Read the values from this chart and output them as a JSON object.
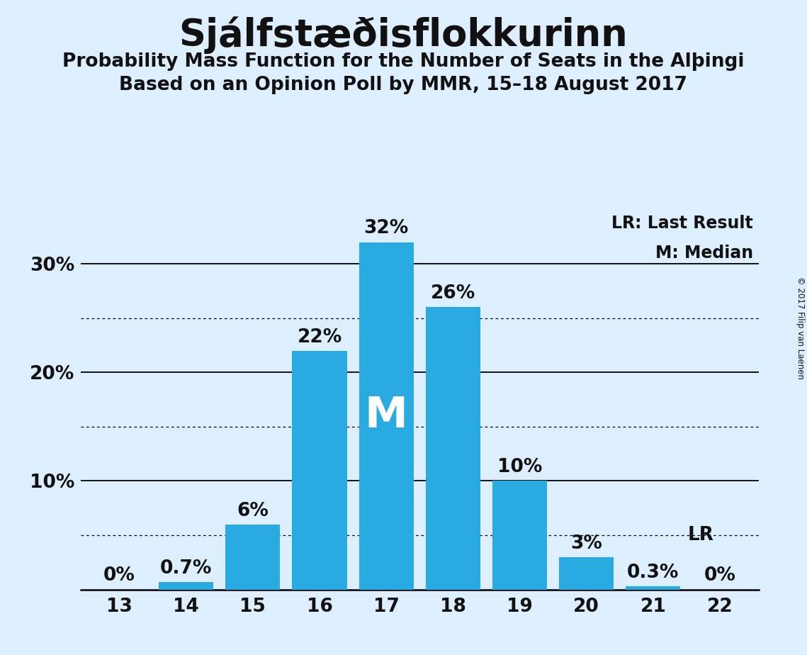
{
  "title": "Sjálfstæðisflokkurinn",
  "subtitle1": "Probability Mass Function for the Number of Seats in the Alþingi",
  "subtitle2": "Based on an Opinion Poll by MMR, 15–18 August 2017",
  "copyright": "© 2017 Filip van Laenen",
  "seats": [
    13,
    14,
    15,
    16,
    17,
    18,
    19,
    20,
    21,
    22
  ],
  "probabilities": [
    0.0,
    0.7,
    6.0,
    22.0,
    32.0,
    26.0,
    10.0,
    3.0,
    0.3,
    0.0
  ],
  "bar_color": "#29ABE2",
  "background_color": "#DDEEFF",
  "text_color": "#111111",
  "median_seat": 17,
  "last_result_seat": 21,
  "ylim": [
    0,
    35
  ],
  "solid_gridlines": [
    10,
    20,
    30
  ],
  "dotted_gridlines": [
    5,
    15,
    25
  ],
  "legend_lr": "LR: Last Result",
  "legend_m": "M: Median",
  "label_fontsize": 19,
  "bar_label_fontsize": 19,
  "title_fontsize": 38,
  "subtitle_fontsize": 19,
  "bar_width": 0.82
}
